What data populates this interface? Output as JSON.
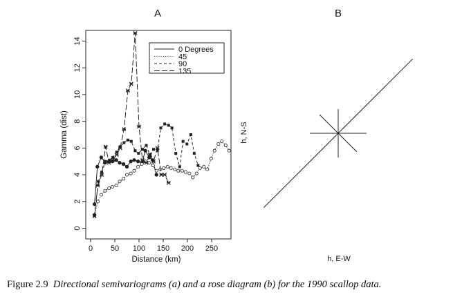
{
  "caption": {
    "label": "Figure 2.9",
    "text": "Directional semivariograms (a) and a rose diagram (b) for the 1990 scallop data."
  },
  "chart_data": [
    {
      "type": "line",
      "panel_label": "A",
      "title": "",
      "xlabel": "Distance (km)",
      "ylabel": "Gamma (dist)",
      "xlim": [
        -10,
        290
      ],
      "ylim": [
        -0.8,
        14.8
      ],
      "xticks": [
        0,
        50,
        100,
        150,
        200,
        250
      ],
      "yticks": [
        0,
        2,
        4,
        6,
        8,
        10,
        12,
        14
      ],
      "grid": false,
      "legend_position": "top-right",
      "series": [
        {
          "name": "0 Degrees",
          "line_style": "solid",
          "marker": "dot",
          "x": [
            8,
            14,
            22,
            30,
            38,
            45,
            53,
            60,
            68,
            75,
            83,
            90,
            98,
            106,
            113,
            121,
            128,
            136
          ],
          "y": [
            1.8,
            4.6,
            5.3,
            4.9,
            5.0,
            5.0,
            5.1,
            4.9,
            4.8,
            4.6,
            5.0,
            5.1,
            5.0,
            4.9,
            5.8,
            5.3,
            5.1,
            4.0
          ]
        },
        {
          "name": "45",
          "line_style": "dotted",
          "marker": "open-circle",
          "x": [
            8,
            15,
            22,
            30,
            38,
            45,
            53,
            60,
            68,
            75,
            83,
            90,
            98,
            106,
            113,
            121,
            129,
            136,
            144,
            151,
            159,
            166,
            174,
            181,
            189,
            196,
            204,
            211,
            219,
            226,
            234,
            241,
            249,
            256,
            264,
            271,
            279,
            286
          ],
          "y": [
            1.0,
            2.0,
            2.5,
            2.8,
            3.0,
            3.1,
            3.2,
            3.5,
            3.7,
            4.0,
            4.1,
            4.3,
            4.6,
            4.8,
            5.0,
            4.9,
            4.7,
            4.3,
            4.4,
            4.5,
            4.6,
            4.5,
            4.4,
            4.3,
            4.3,
            4.2,
            4.1,
            3.8,
            4.1,
            4.5,
            4.6,
            4.4,
            5.2,
            5.8,
            6.3,
            6.5,
            6.2,
            5.8
          ]
        },
        {
          "name": "90",
          "line_style": "dashed",
          "marker": "filled-square",
          "x": [
            8,
            16,
            23,
            31,
            39,
            46,
            54,
            61,
            69,
            77,
            84,
            92,
            99,
            107,
            115,
            122,
            130,
            138,
            145,
            153,
            161,
            168,
            176,
            184,
            191,
            199,
            207,
            214,
            222
          ],
          "y": [
            1.0,
            3.5,
            4.2,
            5.0,
            5.1,
            5.3,
            5.7,
            6.1,
            6.4,
            6.6,
            6.5,
            5.8,
            5.6,
            5.9,
            6.2,
            5.5,
            5.9,
            5.8,
            7.5,
            7.8,
            7.7,
            7.5,
            5.6,
            4.6,
            6.5,
            6.3,
            7.0,
            5.6,
            4.7
          ]
        },
        {
          "name": "135",
          "line_style": "long-dash",
          "marker": "star",
          "x": [
            8,
            15,
            23,
            31,
            38,
            46,
            54,
            61,
            69,
            77,
            84,
            92,
            100,
            107,
            115,
            123,
            130,
            138,
            146,
            153,
            161
          ],
          "y": [
            0.9,
            3.2,
            4.0,
            6.1,
            4.9,
            5.1,
            5.5,
            6.0,
            7.4,
            10.3,
            10.8,
            14.6,
            7.6,
            5.1,
            4.9,
            5.5,
            5.0,
            6.0,
            4.0,
            4.0,
            3.4
          ]
        }
      ]
    },
    {
      "type": "rose",
      "panel_label": "B",
      "xlabel": "h, E-W",
      "ylabel": "h, N-S",
      "rays": [
        {
          "angle_deg": 0,
          "length": 0.12
        },
        {
          "angle_deg": 45,
          "length": 0.52
        },
        {
          "angle_deg": 90,
          "length": 0.14
        },
        {
          "angle_deg": 135,
          "length": 0.13
        },
        {
          "angle_deg": 180,
          "length": 0.12
        },
        {
          "angle_deg": 225,
          "length": 0.52
        },
        {
          "angle_deg": 270,
          "length": 0.14
        },
        {
          "angle_deg": 315,
          "length": 0.13
        }
      ]
    }
  ]
}
